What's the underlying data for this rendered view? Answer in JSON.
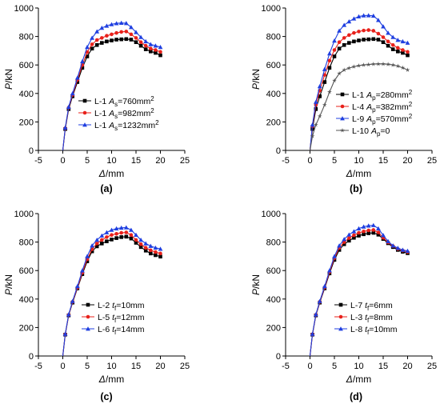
{
  "chart_data": [
    {
      "type": "line",
      "panel_label": "(a)",
      "xlabel_symbol": "Δ",
      "xlabel_unit": "/mm",
      "ylabel_symbol": "P",
      "ylabel_unit": "/kN",
      "xlim": [
        -5,
        25
      ],
      "ylim": [
        0,
        1000
      ],
      "xticks": [
        -5,
        0,
        5,
        10,
        15,
        20,
        25
      ],
      "yticks": [
        0,
        200,
        400,
        600,
        800,
        1000
      ],
      "grid": false,
      "legend_position": "center-left",
      "series": [
        {
          "name": "L-1",
          "legend_var": "A",
          "legend_sub": "s",
          "legend_value": "=760mm",
          "legend_sup": "2",
          "color": "#000000",
          "marker": "square",
          "x": [
            0,
            0.5,
            1.2,
            2,
            3,
            4,
            5,
            6,
            7,
            8,
            9,
            10,
            11,
            12,
            13,
            14,
            15,
            16,
            17,
            18,
            19,
            20
          ],
          "y": [
            0,
            150,
            290,
            380,
            480,
            580,
            660,
            715,
            740,
            755,
            765,
            772,
            778,
            780,
            782,
            778,
            760,
            735,
            710,
            695,
            685,
            668
          ]
        },
        {
          "name": "L-1",
          "legend_var": "A",
          "legend_sub": "s",
          "legend_value": "=982mm",
          "legend_sup": "2",
          "color": "#e8211b",
          "marker": "circle",
          "x": [
            0,
            0.5,
            1.2,
            2,
            3,
            4,
            5,
            6,
            7,
            8,
            9,
            10,
            11,
            12,
            13,
            14,
            15,
            16,
            17,
            18,
            19,
            20
          ],
          "y": [
            0,
            155,
            300,
            390,
            495,
            600,
            690,
            745,
            775,
            790,
            805,
            815,
            825,
            832,
            835,
            815,
            790,
            760,
            735,
            715,
            705,
            692
          ]
        },
        {
          "name": "L-1",
          "legend_var": "A",
          "legend_sub": "s",
          "legend_value": "=1232mm",
          "legend_sup": "2",
          "color": "#1f3fe0",
          "marker": "triangle",
          "x": [
            0,
            0.5,
            1.2,
            2,
            3,
            4,
            5,
            6,
            7,
            8,
            9,
            10,
            11,
            12,
            13,
            14,
            15,
            16,
            17,
            18,
            19,
            20
          ],
          "y": [
            0,
            160,
            305,
            400,
            510,
            625,
            725,
            790,
            835,
            860,
            875,
            885,
            892,
            895,
            893,
            865,
            830,
            795,
            765,
            745,
            735,
            725
          ]
        }
      ]
    },
    {
      "type": "line",
      "panel_label": "(b)",
      "xlabel_symbol": "Δ",
      "xlabel_unit": "/mm",
      "ylabel_symbol": "P",
      "ylabel_unit": "/kN",
      "xlim": [
        -5,
        25
      ],
      "ylim": [
        0,
        1000
      ],
      "xticks": [
        -5,
        0,
        5,
        10,
        15,
        20,
        25
      ],
      "yticks": [
        0,
        200,
        400,
        600,
        800,
        1000
      ],
      "grid": false,
      "legend_position": "lower-right",
      "series": [
        {
          "name": "L-1",
          "legend_var": "A",
          "legend_sub": "p",
          "legend_value": "=280mm",
          "legend_sup": "2",
          "color": "#000000",
          "marker": "square",
          "x": [
            0,
            0.5,
            1.2,
            2,
            3,
            4,
            5,
            6,
            7,
            8,
            9,
            10,
            11,
            12,
            13,
            14,
            15,
            16,
            17,
            18,
            19,
            20
          ],
          "y": [
            0,
            150,
            290,
            380,
            480,
            580,
            660,
            715,
            740,
            755,
            765,
            772,
            778,
            780,
            782,
            778,
            760,
            735,
            710,
            695,
            685,
            668
          ]
        },
        {
          "name": "L-4",
          "legend_var": "A",
          "legend_sub": "p",
          "legend_value": "=382mm",
          "legend_sup": "2",
          "color": "#e8211b",
          "marker": "circle",
          "x": [
            0,
            0.5,
            1.2,
            2,
            3,
            4,
            5,
            6,
            7,
            8,
            9,
            10,
            11,
            12,
            13,
            14,
            15,
            16,
            17,
            18,
            19,
            20
          ],
          "y": [
            0,
            170,
            320,
            420,
            530,
            630,
            705,
            760,
            790,
            810,
            825,
            835,
            842,
            845,
            840,
            820,
            795,
            765,
            740,
            720,
            705,
            692
          ]
        },
        {
          "name": "L-9",
          "legend_var": "A",
          "legend_sub": "p",
          "legend_value": "=570mm",
          "legend_sup": "2",
          "color": "#1f3fe0",
          "marker": "triangle",
          "x": [
            0,
            0.5,
            1.2,
            2,
            3,
            4,
            5,
            6,
            7,
            8,
            9,
            10,
            11,
            12,
            13,
            14,
            15,
            16,
            17,
            18,
            19,
            20
          ],
          "y": [
            0,
            180,
            340,
            450,
            570,
            680,
            770,
            840,
            880,
            905,
            925,
            940,
            947,
            948,
            945,
            915,
            870,
            825,
            795,
            775,
            765,
            755
          ]
        },
        {
          "name": "L-10",
          "legend_var": "A",
          "legend_sub": "p",
          "legend_value": "=0",
          "legend_sup": "",
          "color": "#555555",
          "marker": "star",
          "x": [
            0,
            0.5,
            1.2,
            2,
            3,
            4,
            5,
            6,
            7,
            8,
            9,
            10,
            11,
            12,
            13,
            14,
            15,
            16,
            17,
            18,
            19,
            20
          ],
          "y": [
            0,
            100,
            180,
            240,
            320,
            410,
            490,
            540,
            565,
            578,
            588,
            595,
            600,
            603,
            606,
            607,
            607,
            605,
            600,
            592,
            580,
            565
          ]
        }
      ]
    },
    {
      "type": "line",
      "panel_label": "(c)",
      "xlabel_symbol": "Δ",
      "xlabel_unit": "/mm",
      "ylabel_symbol": "P",
      "ylabel_unit": "/kN",
      "xlim": [
        -5,
        25
      ],
      "ylim": [
        0,
        1000
      ],
      "xticks": [
        -5,
        0,
        5,
        10,
        15,
        20,
        25
      ],
      "yticks": [
        0,
        200,
        400,
        600,
        800,
        1000
      ],
      "grid": false,
      "legend_position": "lower-right",
      "series": [
        {
          "name": "L-2",
          "legend_var": "t",
          "legend_sub": "f",
          "legend_value": "=10mm",
          "legend_sup": "",
          "color": "#000000",
          "marker": "square",
          "x": [
            0,
            0.5,
            1.2,
            2,
            3,
            4,
            5,
            6,
            7,
            8,
            9,
            10,
            11,
            12,
            13,
            14,
            15,
            16,
            17,
            18,
            19,
            20
          ],
          "y": [
            0,
            150,
            285,
            375,
            475,
            575,
            665,
            735,
            770,
            790,
            805,
            818,
            828,
            835,
            838,
            825,
            795,
            765,
            740,
            720,
            708,
            698
          ]
        },
        {
          "name": "L-5",
          "legend_var": "t",
          "legend_sub": "f",
          "legend_value": "=12mm",
          "legend_sup": "",
          "color": "#e8211b",
          "marker": "circle",
          "x": [
            0,
            0.5,
            1.2,
            2,
            3,
            4,
            5,
            6,
            7,
            8,
            9,
            10,
            11,
            12,
            13,
            14,
            15,
            16,
            17,
            18,
            19,
            20
          ],
          "y": [
            0,
            152,
            288,
            380,
            480,
            585,
            680,
            750,
            790,
            815,
            835,
            850,
            858,
            865,
            868,
            850,
            815,
            785,
            760,
            742,
            730,
            720
          ]
        },
        {
          "name": "L-6",
          "legend_var": "t",
          "legend_sub": "f",
          "legend_value": "=14mm",
          "legend_sup": "",
          "color": "#1f3fe0",
          "marker": "triangle",
          "x": [
            0,
            0.5,
            1.2,
            2,
            3,
            4,
            5,
            6,
            7,
            8,
            9,
            10,
            11,
            12,
            13,
            14,
            15,
            16,
            17,
            18,
            19,
            20
          ],
          "y": [
            0,
            155,
            292,
            385,
            490,
            600,
            700,
            775,
            815,
            845,
            868,
            885,
            895,
            900,
            902,
            885,
            850,
            815,
            790,
            772,
            760,
            752
          ]
        }
      ]
    },
    {
      "type": "line",
      "panel_label": "(d)",
      "xlabel_symbol": "Δ",
      "xlabel_unit": "/mm",
      "ylabel_symbol": "P",
      "ylabel_unit": "/kN",
      "xlim": [
        -5,
        25
      ],
      "ylim": [
        0,
        1000
      ],
      "xticks": [
        -5,
        0,
        5,
        10,
        15,
        20,
        25
      ],
      "yticks": [
        0,
        200,
        400,
        600,
        800,
        1000
      ],
      "grid": false,
      "legend_position": "lower-right",
      "series": [
        {
          "name": "L-7",
          "legend_var": "t",
          "legend_sub": "f",
          "legend_value": "=6mm",
          "legend_sup": "",
          "color": "#000000",
          "marker": "square",
          "x": [
            0,
            0.5,
            1.2,
            2,
            3,
            4,
            5,
            6,
            7,
            8,
            9,
            10,
            11,
            12,
            13,
            14,
            15,
            16,
            17,
            18,
            19,
            20
          ],
          "y": [
            0,
            150,
            285,
            375,
            475,
            580,
            675,
            745,
            785,
            810,
            830,
            845,
            855,
            862,
            865,
            852,
            822,
            792,
            765,
            745,
            732,
            722
          ]
        },
        {
          "name": "L-3",
          "legend_var": "t",
          "legend_sub": "f",
          "legend_value": "=8mm",
          "legend_sup": "",
          "color": "#e8211b",
          "marker": "circle",
          "x": [
            0,
            0.5,
            1.2,
            2,
            3,
            4,
            5,
            6,
            7,
            8,
            9,
            10,
            11,
            12,
            13,
            14,
            15,
            16,
            17,
            18,
            19,
            20
          ],
          "y": [
            0,
            152,
            288,
            380,
            482,
            590,
            688,
            760,
            800,
            828,
            848,
            865,
            875,
            882,
            885,
            868,
            830,
            798,
            772,
            752,
            740,
            730
          ]
        },
        {
          "name": "L-8",
          "legend_var": "t",
          "legend_sub": "f",
          "legend_value": "=10mm",
          "legend_sup": "",
          "color": "#1f3fe0",
          "marker": "triangle",
          "x": [
            0,
            0.5,
            1.2,
            2,
            3,
            4,
            5,
            6,
            7,
            8,
            9,
            10,
            11,
            12,
            13,
            14,
            15,
            16,
            17,
            18,
            19,
            20
          ],
          "y": [
            0,
            155,
            292,
            385,
            490,
            600,
            700,
            775,
            820,
            852,
            875,
            895,
            908,
            915,
            918,
            895,
            848,
            805,
            775,
            758,
            745,
            738
          ]
        }
      ]
    }
  ]
}
